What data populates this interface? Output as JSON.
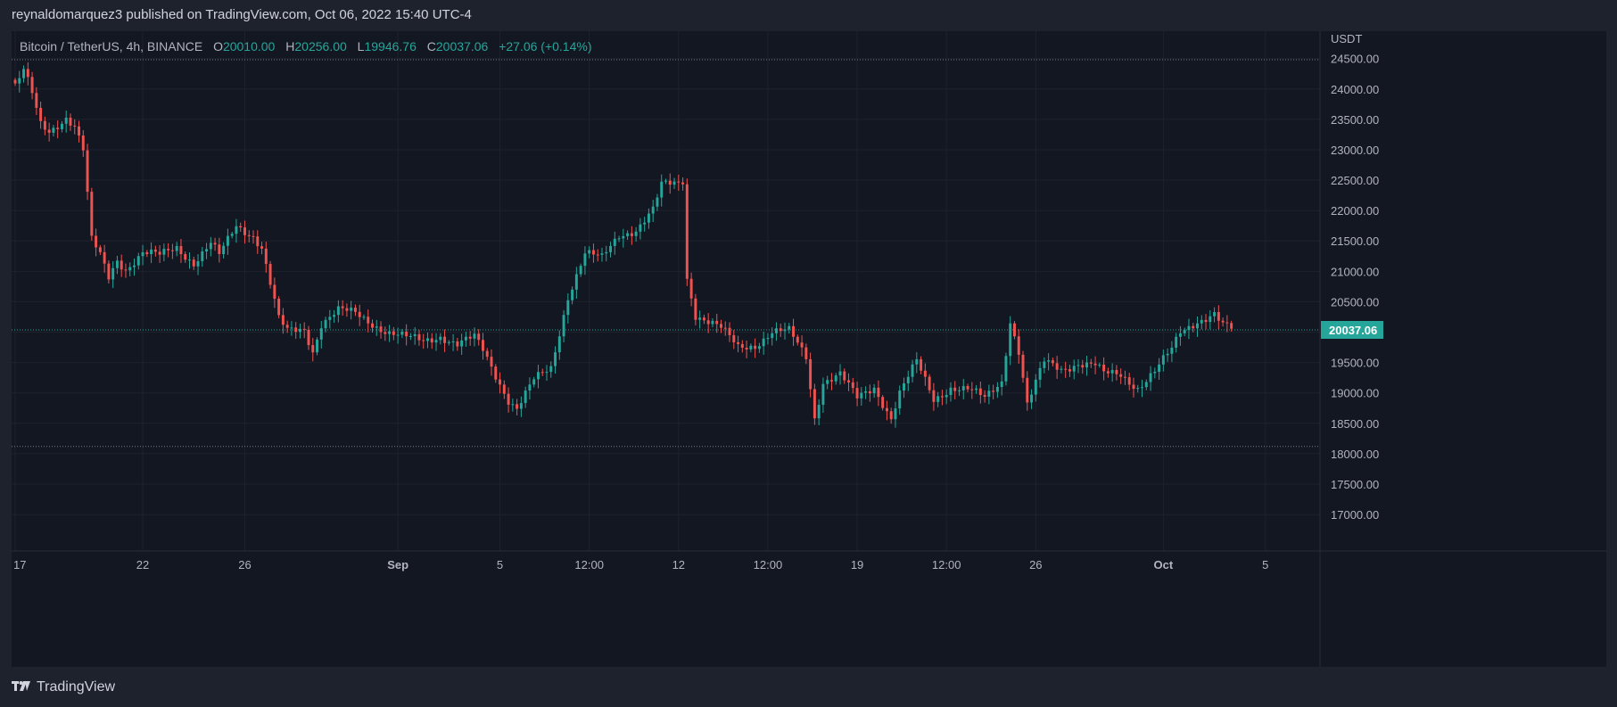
{
  "header": {
    "publisher_text": "reynaldomarquez3 published on TradingView.com, Oct 06, 2022 15:40 UTC-4"
  },
  "legend": {
    "symbol": "Bitcoin / TetherUS, 4h, BINANCE",
    "open_label": "O",
    "open": "20010.00",
    "high_label": "H",
    "high": "20256.00",
    "low_label": "L",
    "low": "19946.76",
    "close_label": "C",
    "close": "20037.06",
    "change": "+27.06 (+0.14%)"
  },
  "footer": {
    "brand": "TradingView"
  },
  "colors": {
    "up": "#26a69a",
    "down": "#ef5350",
    "background": "#131722",
    "grid": "#1e222d",
    "text": "#b2b5be"
  },
  "chart_data": {
    "type": "candlestick",
    "timeframe": "4h",
    "y_axis": {
      "unit": "USDT",
      "range": [
        16400,
        24950
      ],
      "ticks": [
        17000,
        17500,
        18000,
        18500,
        19000,
        19500,
        20000,
        20500,
        21000,
        21500,
        22000,
        22500,
        23000,
        23500,
        24000,
        24500
      ],
      "tick_labels": [
        "17000.00",
        "17500.00",
        "18000.00",
        "18500.00",
        "19000.00",
        "19500.00",
        "20000.00",
        "20500.00",
        "21000.00",
        "21500.00",
        "22000.00",
        "22500.00",
        "23000.00",
        "23500.00",
        "24000.00",
        "24500.00"
      ]
    },
    "x_axis": {
      "labels": [
        "17",
        "22",
        "26",
        "Sep",
        "5",
        "12:00",
        "12",
        "12:00",
        "19",
        "12:00",
        "26",
        "Oct",
        "5"
      ],
      "label_bar_index": [
        0,
        30,
        54,
        90,
        114,
        135,
        156,
        177,
        198,
        219,
        240,
        270,
        294
      ],
      "range": [
        0,
        306
      ]
    },
    "horizontal_lines": [
      24480,
      18120
    ],
    "last_price": 20037.06,
    "last_price_label": "20037.06",
    "path": [
      [
        0,
        24050
      ],
      [
        2,
        24300
      ],
      [
        4,
        23900
      ],
      [
        6,
        23400
      ],
      [
        8,
        23300
      ],
      [
        12,
        23550
      ],
      [
        14,
        23400
      ],
      [
        16,
        23000
      ],
      [
        18,
        21500
      ],
      [
        20,
        21250
      ],
      [
        22,
        20900
      ],
      [
        24,
        21200
      ],
      [
        26,
        21050
      ],
      [
        30,
        21300
      ],
      [
        34,
        21250
      ],
      [
        38,
        21400
      ],
      [
        42,
        21150
      ],
      [
        46,
        21450
      ],
      [
        48,
        21250
      ],
      [
        52,
        21750
      ],
      [
        56,
        21600
      ],
      [
        58,
        21400
      ],
      [
        60,
        20800
      ],
      [
        62,
        20200
      ],
      [
        64,
        20000
      ],
      [
        68,
        20050
      ],
      [
        70,
        19700
      ],
      [
        72,
        20150
      ],
      [
        76,
        20350
      ],
      [
        80,
        20300
      ],
      [
        84,
        20150
      ],
      [
        88,
        20000
      ],
      [
        92,
        19900
      ],
      [
        96,
        19850
      ],
      [
        100,
        19950
      ],
      [
        104,
        19800
      ],
      [
        108,
        19900
      ],
      [
        110,
        19700
      ],
      [
        116,
        18900
      ],
      [
        118,
        18750
      ],
      [
        122,
        19200
      ],
      [
        126,
        19400
      ],
      [
        130,
        20600
      ],
      [
        134,
        21300
      ],
      [
        138,
        21200
      ],
      [
        142,
        21600
      ],
      [
        146,
        21700
      ],
      [
        150,
        22000
      ],
      [
        152,
        22400
      ],
      [
        156,
        22450
      ],
      [
        157,
        22500
      ],
      [
        158,
        20900
      ],
      [
        160,
        20300
      ],
      [
        166,
        20050
      ],
      [
        170,
        19750
      ],
      [
        174,
        19800
      ],
      [
        178,
        20000
      ],
      [
        182,
        20000
      ],
      [
        186,
        19600
      ],
      [
        188,
        18600
      ],
      [
        190,
        19200
      ],
      [
        194,
        19300
      ],
      [
        198,
        18900
      ],
      [
        202,
        19100
      ],
      [
        206,
        18600
      ],
      [
        208,
        19000
      ],
      [
        212,
        19500
      ],
      [
        216,
        18900
      ],
      [
        220,
        19100
      ],
      [
        224,
        19050
      ],
      [
        228,
        18900
      ],
      [
        232,
        19200
      ],
      [
        234,
        20200
      ],
      [
        236,
        19700
      ],
      [
        238,
        18800
      ],
      [
        242,
        19500
      ],
      [
        246,
        19400
      ],
      [
        250,
        19500
      ],
      [
        254,
        19450
      ],
      [
        256,
        19300
      ],
      [
        260,
        19300
      ],
      [
        264,
        19100
      ],
      [
        268,
        19350
      ],
      [
        272,
        19700
      ],
      [
        274,
        20000
      ],
      [
        278,
        20200
      ],
      [
        282,
        20300
      ],
      [
        284,
        20100
      ],
      [
        286,
        20037
      ]
    ]
  }
}
